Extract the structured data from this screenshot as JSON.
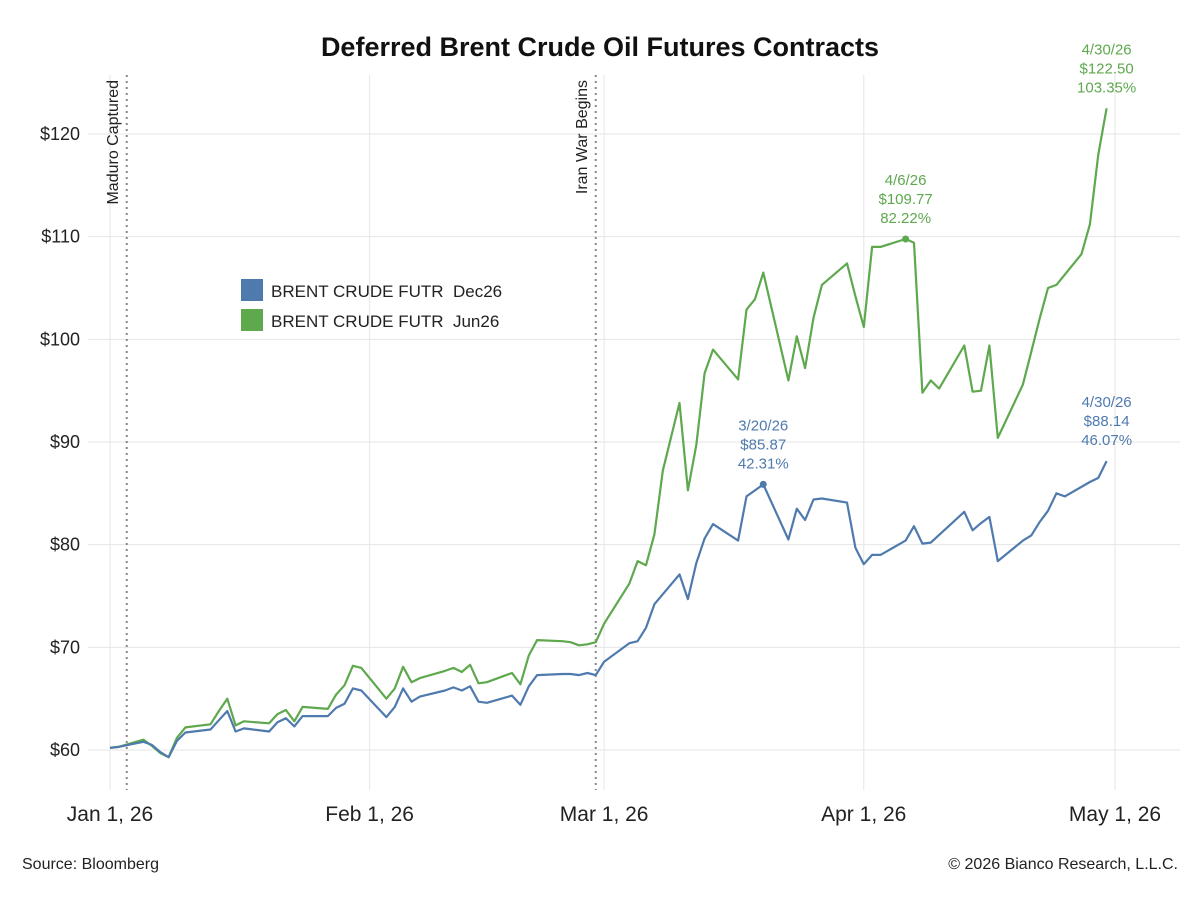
{
  "chart_data": {
    "type": "line",
    "title": "Deferred Brent Crude Oil Futures Contracts",
    "xlabel": "",
    "ylabel": "",
    "x_range": [
      "2026-01-01",
      "2026-05-01"
    ],
    "ylim": [
      56,
      126
    ],
    "y_ticks": [
      60,
      70,
      80,
      90,
      100,
      110,
      120
    ],
    "y_tick_labels": [
      "$60",
      "$70",
      "$80",
      "$90",
      "$100",
      "$110",
      "$120"
    ],
    "x_ticks": [
      "2026-01-01",
      "2026-02-01",
      "2026-03-01",
      "2026-04-01",
      "2026-05-01"
    ],
    "x_tick_labels": [
      "Jan 1, 26",
      "Feb 1, 26",
      "Mar 1, 26",
      "Apr 1, 26",
      "May 1, 26"
    ],
    "grid": true,
    "legend_position": "upper-left",
    "series": [
      {
        "name": "BRENT CRUDE FUTR  Dec26",
        "color": "#4f7aae",
        "points": [
          [
            "2026-01-01",
            60.2
          ],
          [
            "2026-01-02",
            60.3
          ],
          [
            "2026-01-05",
            60.8
          ],
          [
            "2026-01-06",
            60.5
          ],
          [
            "2026-01-07",
            59.8
          ],
          [
            "2026-01-08",
            59.3
          ],
          [
            "2026-01-09",
            60.9
          ],
          [
            "2026-01-10",
            61.7
          ],
          [
            "2026-01-13",
            62.0
          ],
          [
            "2026-01-14",
            62.9
          ],
          [
            "2026-01-15",
            63.8
          ],
          [
            "2026-01-16",
            61.8
          ],
          [
            "2026-01-17",
            62.1
          ],
          [
            "2026-01-20",
            61.8
          ],
          [
            "2026-01-21",
            62.7
          ],
          [
            "2026-01-22",
            63.1
          ],
          [
            "2026-01-23",
            62.3
          ],
          [
            "2026-01-24",
            63.3
          ],
          [
            "2026-01-27",
            63.3
          ],
          [
            "2026-01-28",
            64.1
          ],
          [
            "2026-01-29",
            64.5
          ],
          [
            "2026-01-30",
            66.0
          ],
          [
            "2026-01-31",
            65.8
          ],
          [
            "2026-02-03",
            63.2
          ],
          [
            "2026-02-04",
            64.2
          ],
          [
            "2026-02-05",
            66.0
          ],
          [
            "2026-02-06",
            64.7
          ],
          [
            "2026-02-07",
            65.2
          ],
          [
            "2026-02-10",
            65.8
          ],
          [
            "2026-02-11",
            66.1
          ],
          [
            "2026-02-12",
            65.8
          ],
          [
            "2026-02-13",
            66.2
          ],
          [
            "2026-02-14",
            64.7
          ],
          [
            "2026-02-15",
            64.6
          ],
          [
            "2026-02-18",
            65.3
          ],
          [
            "2026-02-19",
            64.4
          ],
          [
            "2026-02-20",
            66.2
          ],
          [
            "2026-02-21",
            67.3
          ],
          [
            "2026-02-24",
            67.4
          ],
          [
            "2026-02-25",
            67.4
          ],
          [
            "2026-02-26",
            67.3
          ],
          [
            "2026-02-27",
            67.5
          ],
          [
            "2026-02-28",
            67.3
          ],
          [
            "2026-03-01",
            68.6
          ],
          [
            "2026-03-04",
            70.4
          ],
          [
            "2026-03-05",
            70.6
          ],
          [
            "2026-03-06",
            71.9
          ],
          [
            "2026-03-07",
            74.2
          ],
          [
            "2026-03-10",
            77.1
          ],
          [
            "2026-03-11",
            74.7
          ],
          [
            "2026-03-12",
            78.2
          ],
          [
            "2026-03-13",
            80.6
          ],
          [
            "2026-03-14",
            82.0
          ],
          [
            "2026-03-17",
            80.4
          ],
          [
            "2026-03-18",
            84.7
          ],
          [
            "2026-03-20",
            85.87
          ],
          [
            "2026-03-23",
            80.5
          ],
          [
            "2026-03-24",
            83.5
          ],
          [
            "2026-03-25",
            82.4
          ],
          [
            "2026-03-26",
            84.4
          ],
          [
            "2026-03-27",
            84.5
          ],
          [
            "2026-03-30",
            84.1
          ],
          [
            "2026-03-31",
            79.7
          ],
          [
            "2026-04-01",
            78.1
          ],
          [
            "2026-04-02",
            79.0
          ],
          [
            "2026-04-03",
            79.0
          ],
          [
            "2026-04-06",
            80.4
          ],
          [
            "2026-04-07",
            81.8
          ],
          [
            "2026-04-08",
            80.1
          ],
          [
            "2026-04-09",
            80.2
          ],
          [
            "2026-04-13",
            83.2
          ],
          [
            "2026-04-14",
            81.4
          ],
          [
            "2026-04-15",
            82.1
          ],
          [
            "2026-04-16",
            82.7
          ],
          [
            "2026-04-17",
            78.4
          ],
          [
            "2026-04-20",
            80.4
          ],
          [
            "2026-04-21",
            80.9
          ],
          [
            "2026-04-22",
            82.2
          ],
          [
            "2026-04-23",
            83.3
          ],
          [
            "2026-04-24",
            85.0
          ],
          [
            "2026-04-25",
            84.7
          ],
          [
            "2026-04-28",
            86.1
          ],
          [
            "2026-04-29",
            86.5
          ],
          [
            "2026-04-30",
            88.14
          ]
        ]
      },
      {
        "name": "BRENT CRUDE FUTR  Jun26",
        "color": "#5ea84e",
        "points": [
          [
            "2026-01-01",
            60.2
          ],
          [
            "2026-01-02",
            60.3
          ],
          [
            "2026-01-05",
            61.0
          ],
          [
            "2026-01-06",
            60.4
          ],
          [
            "2026-01-07",
            59.7
          ],
          [
            "2026-01-08",
            59.3
          ],
          [
            "2026-01-09",
            61.2
          ],
          [
            "2026-01-10",
            62.2
          ],
          [
            "2026-01-13",
            62.5
          ],
          [
            "2026-01-14",
            63.8
          ],
          [
            "2026-01-15",
            65.0
          ],
          [
            "2026-01-16",
            62.4
          ],
          [
            "2026-01-17",
            62.8
          ],
          [
            "2026-01-20",
            62.6
          ],
          [
            "2026-01-21",
            63.5
          ],
          [
            "2026-01-22",
            63.9
          ],
          [
            "2026-01-23",
            62.8
          ],
          [
            "2026-01-24",
            64.2
          ],
          [
            "2026-01-27",
            64.0
          ],
          [
            "2026-01-28",
            65.4
          ],
          [
            "2026-01-29",
            66.3
          ],
          [
            "2026-01-30",
            68.2
          ],
          [
            "2026-01-31",
            68.0
          ],
          [
            "2026-02-03",
            65.0
          ],
          [
            "2026-02-04",
            66.0
          ],
          [
            "2026-02-05",
            68.1
          ],
          [
            "2026-02-06",
            66.6
          ],
          [
            "2026-02-07",
            67.0
          ],
          [
            "2026-02-10",
            67.7
          ],
          [
            "2026-02-11",
            68.0
          ],
          [
            "2026-02-12",
            67.6
          ],
          [
            "2026-02-13",
            68.3
          ],
          [
            "2026-02-14",
            66.5
          ],
          [
            "2026-02-15",
            66.6
          ],
          [
            "2026-02-18",
            67.5
          ],
          [
            "2026-02-19",
            66.4
          ],
          [
            "2026-02-20",
            69.2
          ],
          [
            "2026-02-21",
            70.7
          ],
          [
            "2026-02-24",
            70.6
          ],
          [
            "2026-02-25",
            70.5
          ],
          [
            "2026-02-26",
            70.2
          ],
          [
            "2026-02-27",
            70.3
          ],
          [
            "2026-02-28",
            70.5
          ],
          [
            "2026-03-01",
            72.3
          ],
          [
            "2026-03-04",
            76.2
          ],
          [
            "2026-03-05",
            78.4
          ],
          [
            "2026-03-06",
            78.0
          ],
          [
            "2026-03-07",
            81.0
          ],
          [
            "2026-03-08",
            87.2
          ],
          [
            "2026-03-10",
            93.8
          ],
          [
            "2026-03-11",
            85.3
          ],
          [
            "2026-03-12",
            89.7
          ],
          [
            "2026-03-13",
            96.7
          ],
          [
            "2026-03-14",
            99.0
          ],
          [
            "2026-03-17",
            96.1
          ],
          [
            "2026-03-18",
            102.9
          ],
          [
            "2026-03-19",
            103.9
          ],
          [
            "2026-03-20",
            106.5
          ],
          [
            "2026-03-23",
            96.0
          ],
          [
            "2026-03-24",
            100.3
          ],
          [
            "2026-03-25",
            97.2
          ],
          [
            "2026-03-26",
            102.1
          ],
          [
            "2026-03-27",
            105.3
          ],
          [
            "2026-03-30",
            107.4
          ],
          [
            "2026-03-31",
            104.2
          ],
          [
            "2026-04-01",
            101.2
          ],
          [
            "2026-04-02",
            109.0
          ],
          [
            "2026-04-03",
            109.0
          ],
          [
            "2026-04-06",
            109.77
          ],
          [
            "2026-04-07",
            109.4
          ],
          [
            "2026-04-08",
            94.8
          ],
          [
            "2026-04-09",
            96.0
          ],
          [
            "2026-04-10",
            95.2
          ],
          [
            "2026-04-13",
            99.4
          ],
          [
            "2026-04-14",
            94.9
          ],
          [
            "2026-04-15",
            95.0
          ],
          [
            "2026-04-16",
            99.4
          ],
          [
            "2026-04-17",
            90.4
          ],
          [
            "2026-04-20",
            95.6
          ],
          [
            "2026-04-21",
            98.8
          ],
          [
            "2026-04-22",
            102.0
          ],
          [
            "2026-04-23",
            105.0
          ],
          [
            "2026-04-24",
            105.3
          ],
          [
            "2026-04-27",
            108.3
          ],
          [
            "2026-04-28",
            111.2
          ],
          [
            "2026-04-29",
            118.0
          ],
          [
            "2026-04-30",
            122.5
          ]
        ]
      }
    ],
    "events": [
      {
        "date": "2026-01-03",
        "label": "Maduro Captured"
      },
      {
        "date": "2026-02-28",
        "label": "Iran War Begins"
      }
    ],
    "annotations": [
      {
        "series": 0,
        "date": "2026-03-20",
        "value": 85.87,
        "lines": [
          "3/20/26",
          "$85.87",
          "42.31%"
        ],
        "marker": true
      },
      {
        "series": 0,
        "date": "2026-04-30",
        "value": 88.14,
        "lines": [
          "4/30/26",
          "$88.14",
          "46.07%"
        ],
        "marker": false
      },
      {
        "series": 1,
        "date": "2026-04-06",
        "value": 109.77,
        "lines": [
          "4/6/26",
          "$109.77",
          "82.22%"
        ],
        "marker": true
      },
      {
        "series": 1,
        "date": "2026-04-30",
        "value": 122.5,
        "lines": [
          "4/30/26",
          "$122.50",
          "103.35%"
        ],
        "marker": false
      }
    ]
  },
  "footer": {
    "source": "Source: Bloomberg",
    "copyright": "© 2026 Bianco Research, L.L.C."
  }
}
